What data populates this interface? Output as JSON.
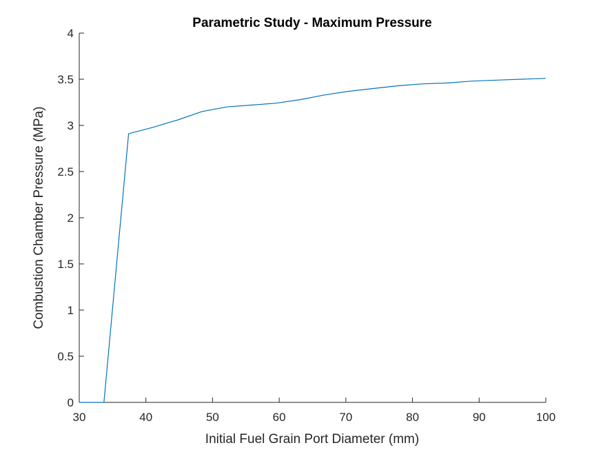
{
  "chart_data": {
    "type": "line",
    "title": "Parametric Study - Maximum Pressure",
    "xlabel": "Initial Fuel Grain Port Diameter (mm)",
    "ylabel": "Combustion Chamber Pressure (MPa)",
    "xlim": [
      30,
      100
    ],
    "ylim": [
      0,
      4
    ],
    "xticks": [
      30,
      40,
      50,
      60,
      70,
      80,
      90,
      100
    ],
    "yticks": [
      0,
      0.5,
      1,
      1.5,
      2,
      2.5,
      3,
      3.5,
      4
    ],
    "xtick_labels": [
      "30",
      "40",
      "50",
      "60",
      "70",
      "80",
      "90",
      "100"
    ],
    "ytick_labels": [
      "0",
      "0.5",
      "1",
      "1.5",
      "2",
      "2.5",
      "3",
      "3.5",
      "4"
    ],
    "grid": false,
    "series": [
      {
        "color": "#0072BD",
        "x": [
          30,
          33.7,
          37.4,
          41.1,
          44.8,
          48.4,
          52.1,
          55.8,
          59.5,
          63.2,
          66.8,
          70.5,
          74.2,
          77.9,
          81.6,
          85.3,
          88.9,
          92.6,
          96.3,
          100
        ],
        "y": [
          0,
          0,
          2.91,
          2.98,
          3.06,
          3.15,
          3.2,
          3.22,
          3.24,
          3.28,
          3.33,
          3.37,
          3.4,
          3.43,
          3.45,
          3.46,
          3.48,
          3.49,
          3.5,
          3.51
        ]
      }
    ]
  }
}
